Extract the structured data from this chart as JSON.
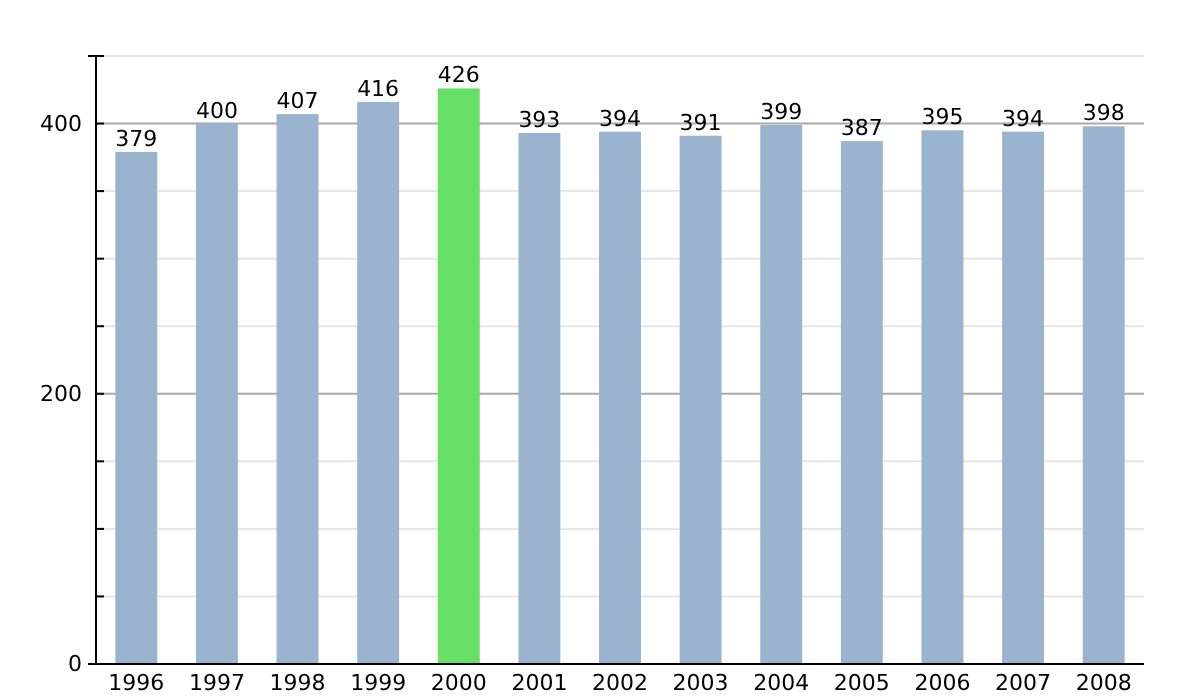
{
  "chart_data": {
    "type": "bar",
    "categories": [
      "1996",
      "1997",
      "1998",
      "1999",
      "2000",
      "2001",
      "2002",
      "2003",
      "2004",
      "2005",
      "2006",
      "2007",
      "2008"
    ],
    "values": [
      379,
      400,
      407,
      416,
      426,
      393,
      394,
      391,
      399,
      387,
      395,
      394,
      398
    ],
    "colors": [
      "#9ab3cf",
      "#9ab3cf",
      "#9ab3cf",
      "#9ab3cf",
      "#66e066",
      "#9ab3cf",
      "#9ab3cf",
      "#9ab3cf",
      "#9ab3cf",
      "#9ab3cf",
      "#9ab3cf",
      "#9ab3cf",
      "#9ab3cf"
    ],
    "ylim": [
      0,
      450
    ],
    "yticks": [
      0,
      {
        "value": 50,
        "label": null
      },
      {
        "value": 100,
        "label": null
      },
      {
        "value": 150,
        "label": null
      },
      200,
      {
        "value": 250,
        "label": null
      },
      {
        "value": 300,
        "label": null
      },
      {
        "value": 350,
        "label": null
      },
      400,
      {
        "value": 450,
        "label": null
      }
    ],
    "grid": true,
    "data_labels": true
  }
}
